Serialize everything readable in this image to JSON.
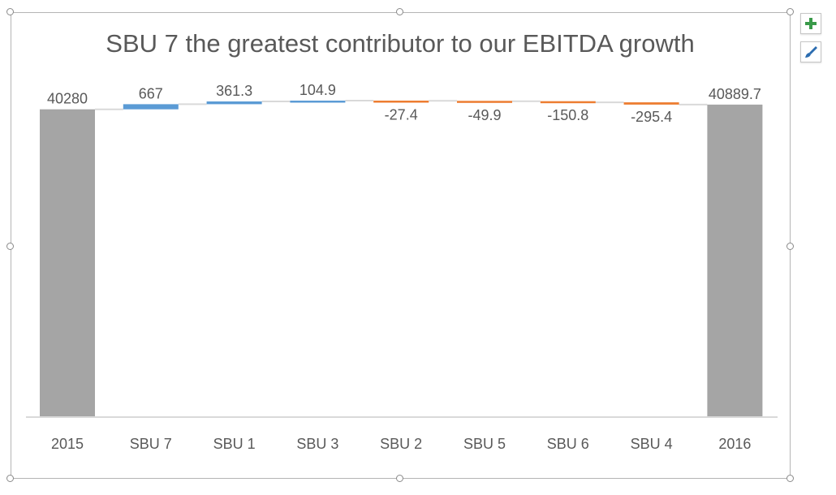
{
  "chart_data": {
    "type": "waterfall",
    "title": "SBU 7 the greatest contributor to our EBITDA growth",
    "categories": [
      "2015",
      "SBU 7",
      "SBU 1",
      "SBU 3",
      "SBU 2",
      "SBU 5",
      "SBU 6",
      "SBU 4",
      "2016"
    ],
    "values": [
      40280,
      667,
      361.3,
      104.9,
      -27.4,
      -49.9,
      -150.8,
      -295.4,
      40889.7
    ],
    "data_labels": [
      "40280",
      "667",
      "361.3",
      "104.9",
      "-27.4",
      "-49.9",
      "-150.8",
      "-295.4",
      "40889.7"
    ],
    "totals": [
      "2015",
      "2016"
    ],
    "colors": {
      "total": "#a5a5a5",
      "increase": "#5b9bd5",
      "decrease": "#ed7d31",
      "connector": "#d9d9d9",
      "axis": "#d9d9d9",
      "text": "#595959"
    },
    "gridlines": false,
    "legend": "none"
  },
  "toolbar": {
    "chart_elements_icon": "plus-icon",
    "chart_styles_icon": "paintbrush-icon"
  }
}
